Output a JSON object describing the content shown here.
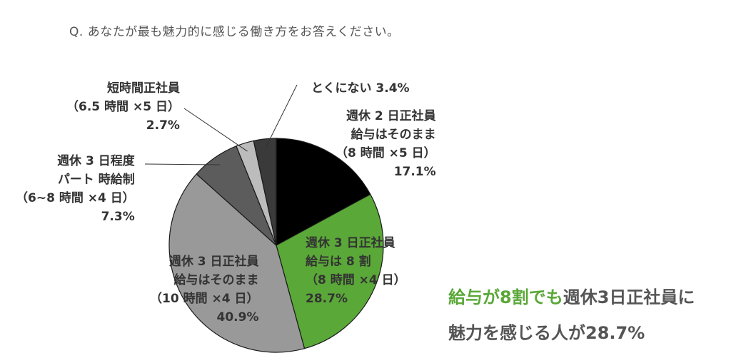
{
  "question": "Q. あなたが最も魅力的に感じる働き方をお答えください。",
  "chart_data": {
    "type": "pie",
    "start_angle_deg": 0,
    "direction": "clockwise",
    "slices": [
      {
        "key": "s1",
        "value": 17.1,
        "color": "#000000",
        "lines": [
          "週休 2 日正社員",
          "給与はそのまま",
          "（8 時間 ×5 日）",
          "17.1%"
        ]
      },
      {
        "key": "s2",
        "value": 28.7,
        "color": "#5aa838",
        "lines": [
          "週休 3 日正社員",
          "給与は 8 割",
          "（8 時間 ×4 日）",
          "28.7%"
        ]
      },
      {
        "key": "s3",
        "value": 40.9,
        "color": "#999999",
        "lines": [
          "週休 3 日正社員",
          "給与はそのまま",
          "（10 時間 ×4 日）",
          "40.9%"
        ]
      },
      {
        "key": "s4",
        "value": 7.3,
        "color": "#5c5c5c",
        "lines": [
          "週休 3 日程度",
          "パート 時給制",
          "（6~8 時間 ×4 日）",
          "7.3%"
        ]
      },
      {
        "key": "s5",
        "value": 2.7,
        "color": "#bcbcbc",
        "lines": [
          "短時間正社員",
          "（6.5 時間 ×5 日）",
          "2.7%"
        ]
      },
      {
        "key": "s6",
        "value": 3.4,
        "color": "#3a3a3a",
        "lines": [
          "とくにない 3.4%"
        ]
      }
    ]
  },
  "callout": {
    "highlight": "給与が8割でも",
    "rest_line1": "週休3日正社員に",
    "line2": "魅力を感じる人が28.7%"
  },
  "colors": {
    "highlight": "#5aa838",
    "text": "#555555"
  }
}
